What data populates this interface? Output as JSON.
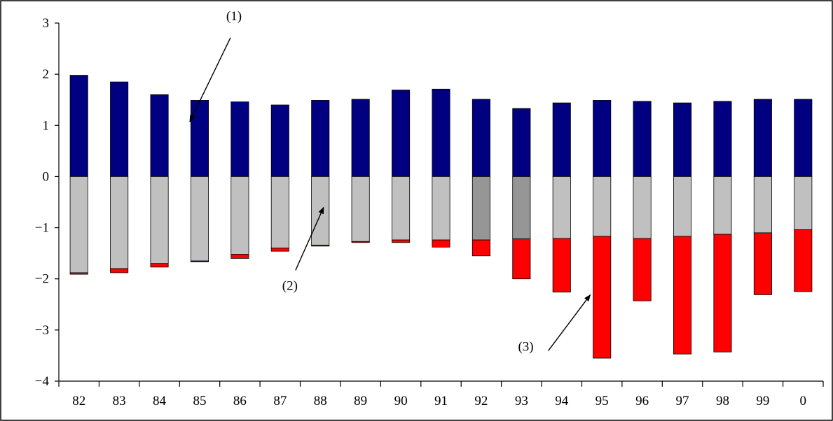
{
  "chart_data": {
    "type": "bar",
    "stacked": true,
    "title": "",
    "xlabel": "",
    "ylabel": "",
    "ylim": [
      -4,
      3
    ],
    "yticks": [
      3,
      2,
      1,
      0,
      -1,
      -2,
      -3,
      -4
    ],
    "ytick_labels": [
      "3",
      "2",
      "1",
      "0",
      "−1",
      "−2",
      "−3",
      "−4"
    ],
    "grid": false,
    "legend": "none",
    "categories": [
      "82",
      "83",
      "84",
      "85",
      "86",
      "87",
      "88",
      "89",
      "90",
      "91",
      "92",
      "93",
      "94",
      "95",
      "96",
      "97",
      "98",
      "99",
      "0"
    ],
    "series": [
      {
        "color": "#000080",
        "values": [
          1.98,
          1.85,
          1.6,
          1.49,
          1.46,
          1.4,
          1.49,
          1.51,
          1.69,
          1.71,
          1.51,
          1.33,
          1.44,
          1.49,
          1.47,
          1.44,
          1.47,
          1.51,
          1.51
        ]
      },
      {
        "color": "#c0c0c0",
        "alt_color": "#969696",
        "alt_color_categories": [
          "92",
          "93"
        ],
        "values": [
          -1.88,
          -1.8,
          -1.7,
          -1.65,
          -1.52,
          -1.4,
          -1.34,
          -1.27,
          -1.24,
          -1.24,
          -1.24,
          -1.22,
          -1.21,
          -1.17,
          -1.21,
          -1.17,
          -1.13,
          -1.1,
          -1.04
        ]
      },
      {
        "color": "#ff0000",
        "values": [
          -0.03,
          -0.08,
          -0.07,
          -0.02,
          -0.08,
          -0.06,
          -0.02,
          -0.02,
          -0.05,
          -0.14,
          -0.31,
          -0.78,
          -1.05,
          -2.38,
          -1.22,
          -2.3,
          -2.3,
          -1.21,
          -1.21
        ]
      }
    ],
    "annotations": [
      {
        "text": "(1)",
        "category": "85",
        "series_index": 0
      },
      {
        "text": "(2)",
        "category": "88",
        "series_index": 1
      },
      {
        "text": "(3)",
        "category": "95",
        "series_index": 2
      }
    ]
  }
}
